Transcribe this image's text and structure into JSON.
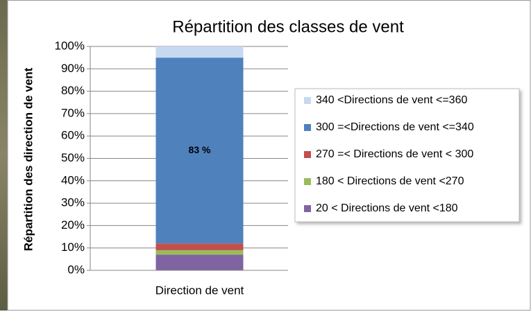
{
  "chart_data": {
    "type": "stacked_bar",
    "title": "Répartition des classes de vent",
    "y_axis_label": "Répartition des direction de vent",
    "categories": [
      "Direction de vent"
    ],
    "series": [
      {
        "name": "20 < Directions de vent <180",
        "color": "#8064a2",
        "values": [
          7
        ]
      },
      {
        "name": "180 < Directions de vent <270",
        "color": "#9bbb59",
        "values": [
          2
        ]
      },
      {
        "name": "270 =< Directions de vent < 300",
        "color": "#c0504d",
        "values": [
          3
        ]
      },
      {
        "name": "300 =<Directions de vent <=340",
        "color": "#4f81bd",
        "values": [
          83
        ],
        "value_labels": [
          "83 %"
        ]
      },
      {
        "name": "340 <Directions de vent <=360",
        "color": "#c6d9f1",
        "values": [
          5
        ]
      }
    ],
    "ylim": [
      0,
      100
    ],
    "yticks": [
      {
        "value": 0,
        "label": "0%"
      },
      {
        "value": 10,
        "label": "10%"
      },
      {
        "value": 20,
        "label": "20%"
      },
      {
        "value": 30,
        "label": "30%"
      },
      {
        "value": 40,
        "label": "40%"
      },
      {
        "value": 50,
        "label": "50%"
      },
      {
        "value": 60,
        "label": "60%"
      },
      {
        "value": 70,
        "label": "70%"
      },
      {
        "value": 80,
        "label": "80%"
      },
      {
        "value": 90,
        "label": "90%"
      },
      {
        "value": 100,
        "label": "100%"
      }
    ],
    "grid": true,
    "legend": "right"
  }
}
